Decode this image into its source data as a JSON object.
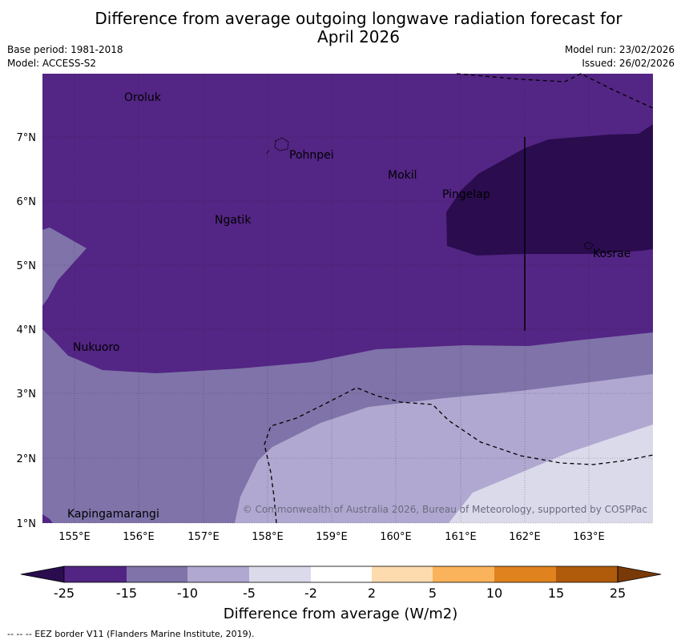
{
  "title": {
    "line1": "Difference from average outgoing longwave radiation forecast for",
    "line2": "April 2026"
  },
  "meta": {
    "base_period": "Base period: 1981-2018",
    "model": "Model: ACCESS-S2",
    "model_run": "Model run: 23/02/2026",
    "issued": "Issued: 26/02/2026"
  },
  "map": {
    "lat_labels": [
      "7°N",
      "6°N",
      "5°N",
      "4°N",
      "3°N",
      "2°N",
      "1°N"
    ],
    "lon_labels": [
      "155°E",
      "156°E",
      "157°E",
      "158°E",
      "159°E",
      "160°E",
      "161°E",
      "162°E",
      "163°E"
    ],
    "places": [
      "Oroluk",
      "Pohnpei",
      "Mokil",
      "Pingelap",
      "Ngatik",
      "Kosrae",
      "Nukuoro",
      "Kapingamarangi"
    ],
    "copyright": "© Commonwealth of Australia 2026, Bureau of Meteorology, supported by COSPPac"
  },
  "colorbar": {
    "ticks": [
      "-25",
      "-15",
      "-10",
      "-5",
      "-2",
      "2",
      "5",
      "10",
      "15",
      "25"
    ],
    "label": "Difference from average (W/m2)",
    "colors": [
      "#2a0c4f",
      "#522584",
      "#7f73a9",
      "#b0a8d0",
      "#dadaeb",
      "#ffffff",
      "#fddbae",
      "#fbb35b",
      "#e0821d",
      "#b05a0c",
      "#7a3a08"
    ]
  },
  "footer": "--  --  -- EEZ border V11 (Flanders Marine Institute, 2019)."
}
